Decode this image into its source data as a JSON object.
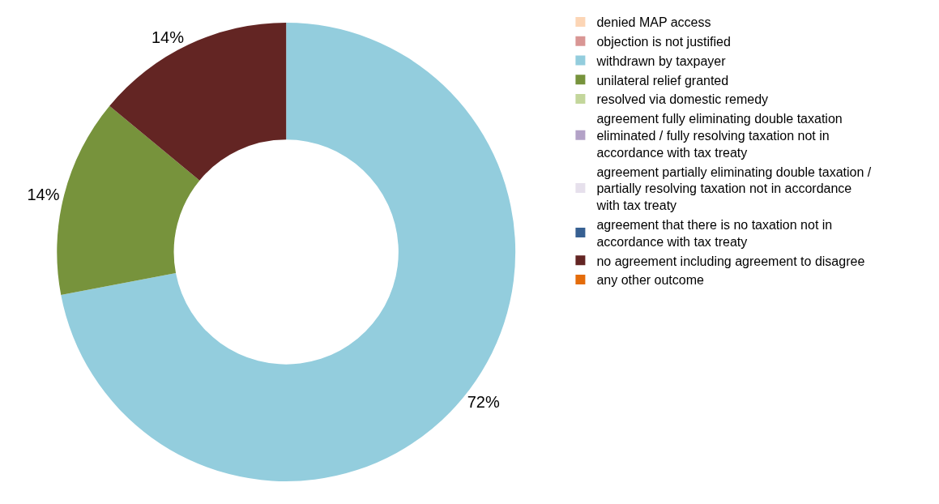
{
  "chart_data": {
    "type": "donut",
    "categories": [
      "denied MAP access",
      "objection is not justified",
      "withdrawn by taxpayer",
      "unilateral relief granted",
      "resolved via domestic remedy",
      "agreement fully eliminating double taxation eliminated / fully resolving taxation not in accordance with tax treaty",
      "agreement partially eliminating double taxation / partially resolving taxation not in accordance with tax treaty",
      "agreement that there is no taxation not in accordance with tax treaty",
      "no agreement including agreement to disagree",
      "any other outcome"
    ],
    "values": [
      0,
      0,
      72,
      14,
      0,
      0,
      0,
      0,
      14,
      0
    ],
    "colors": [
      "#fcd5b5",
      "#d99694",
      "#93cddd",
      "#77933c",
      "#c3d69b",
      "#b3a2c7",
      "#e6e0ec",
      "#376092",
      "#632523",
      "#e46c0a"
    ],
    "value_labels": [
      null,
      null,
      "72%",
      "14%",
      null,
      null,
      null,
      null,
      "14%",
      null
    ],
    "legend": "right"
  }
}
